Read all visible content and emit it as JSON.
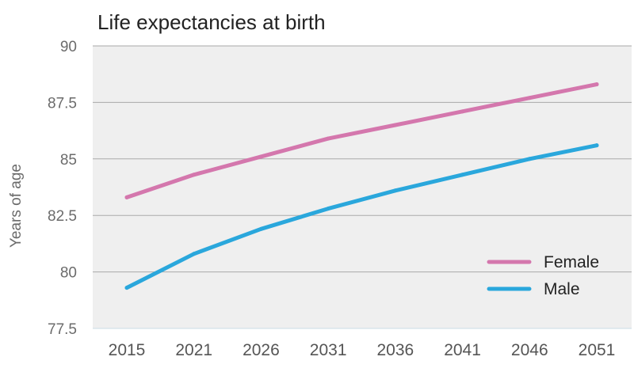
{
  "chart_data": {
    "type": "line",
    "title": "Life expectancies at birth",
    "xlabel": "",
    "ylabel": "Years of age",
    "categories": [
      "2015",
      "2021",
      "2026",
      "2031",
      "2036",
      "2041",
      "2046",
      "2051"
    ],
    "ylim": [
      77.5,
      90
    ],
    "yticks": [
      "77.5",
      "80",
      "82.5",
      "85",
      "87.5",
      "90"
    ],
    "grid": true,
    "legend_position": "bottom-right",
    "series": [
      {
        "name": "Female",
        "color": "#d477ad",
        "values": [
          83.3,
          84.3,
          85.1,
          85.9,
          86.5,
          87.1,
          87.7,
          88.3
        ]
      },
      {
        "name": "Male",
        "color": "#2aa7dc",
        "values": [
          79.3,
          80.8,
          81.9,
          82.8,
          83.6,
          84.3,
          85.0,
          85.6
        ]
      }
    ],
    "colors": {
      "plot_background": "#efefef",
      "grid": "#aaaaaa"
    }
  }
}
